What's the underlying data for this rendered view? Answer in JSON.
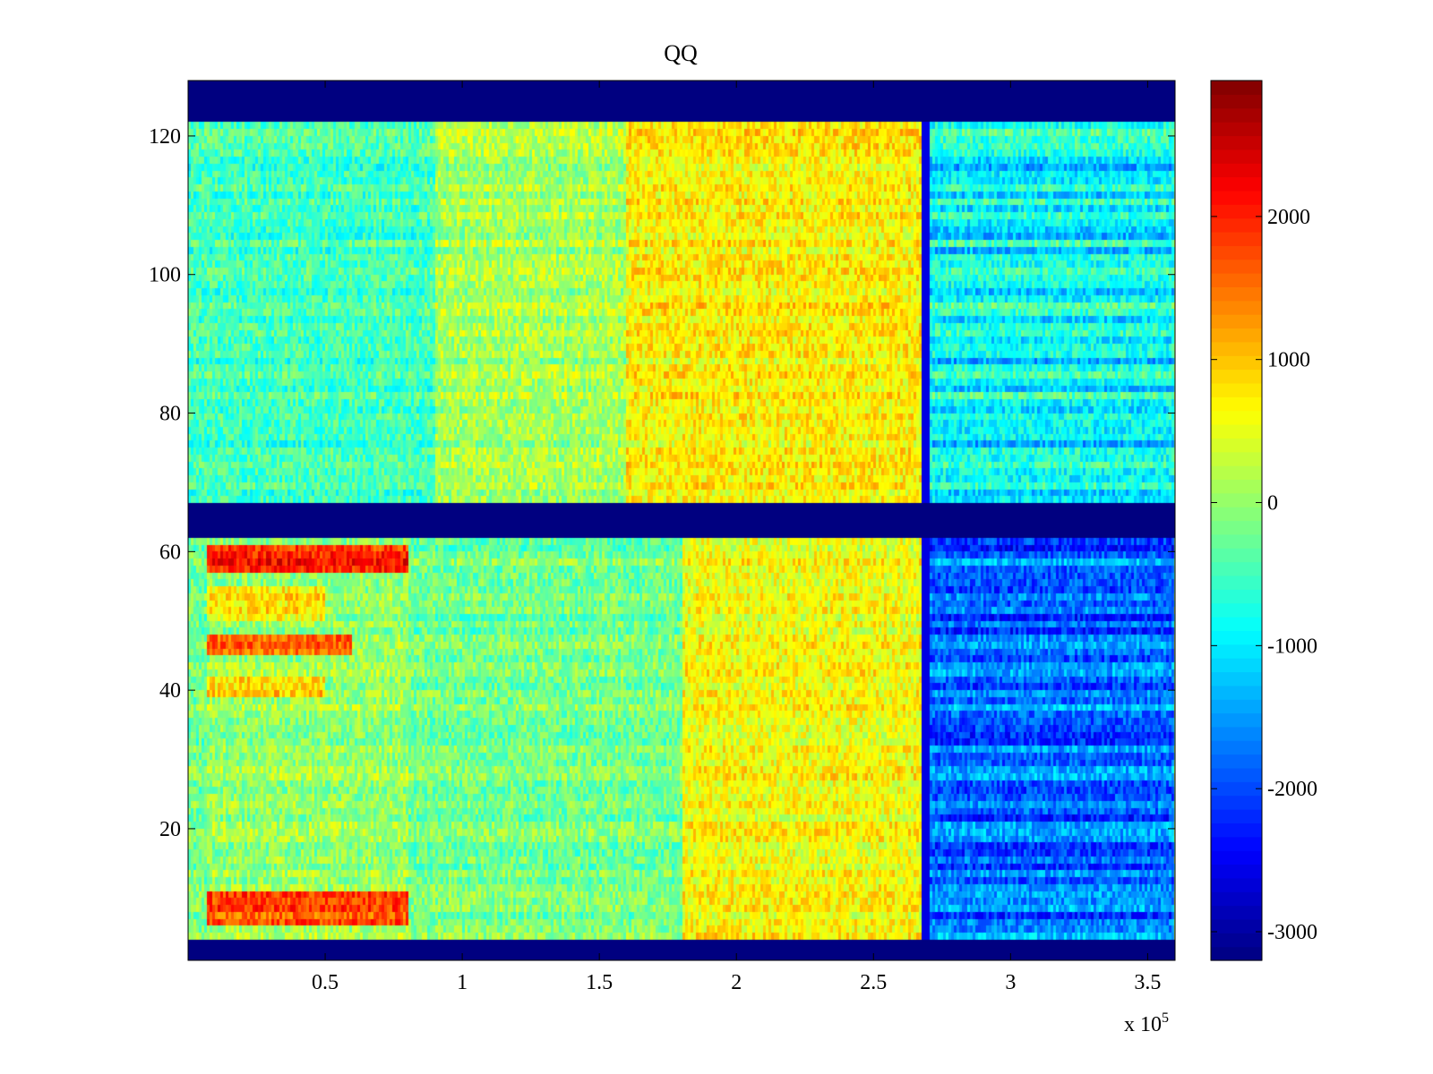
{
  "chart_data": {
    "type": "heatmap",
    "title": "QQ",
    "xlabel": "",
    "ylabel": "",
    "x_multiplier_label": "x 10",
    "x_multiplier_exponent": "5",
    "xlim": [
      0,
      3.6
    ],
    "ylim": [
      1,
      128
    ],
    "x_ticks": [
      0.5,
      1,
      1.5,
      2,
      2.5,
      3,
      3.5
    ],
    "x_tick_labels": [
      "0.5",
      "1",
      "1.5",
      "2",
      "2.5",
      "3",
      "3.5"
    ],
    "y_ticks": [
      20,
      40,
      60,
      80,
      100,
      120
    ],
    "y_tick_labels": [
      "20",
      "40",
      "60",
      "80",
      "100",
      "120"
    ],
    "colorbar": {
      "colormap": "jet",
      "clim": [
        -3200,
        2950
      ],
      "ticks": [
        2000,
        1000,
        0,
        -1000,
        -2000,
        -3000
      ],
      "tick_labels": [
        "2000",
        "1000",
        "0",
        "-1000",
        "-2000",
        "-3000"
      ]
    },
    "masked_rows": [
      [
        1,
        4
      ],
      [
        62,
        67
      ],
      [
        122,
        128
      ]
    ],
    "masked_value": -3200,
    "step_x": 2.69,
    "regions": [
      {
        "x": [
          0,
          0.07
        ],
        "y": [
          4,
          62
        ],
        "mean": -200,
        "note": "left edge strip"
      },
      {
        "x": [
          0.07,
          0.8
        ],
        "y": [
          6,
          11
        ],
        "mean": 1700
      },
      {
        "x": [
          0.07,
          0.8
        ],
        "y": [
          57,
          61
        ],
        "mean": 2000
      },
      {
        "x": [
          0.07,
          0.6
        ],
        "y": [
          45,
          48
        ],
        "mean": 1500
      },
      {
        "x": [
          0.07,
          0.5
        ],
        "y": [
          39,
          42
        ],
        "mean": 900
      },
      {
        "x": [
          0.07,
          0.5
        ],
        "y": [
          50,
          55
        ],
        "mean": 800
      },
      {
        "x": [
          0,
          0.9
        ],
        "y": [
          67,
          122
        ],
        "mean": -500
      },
      {
        "x": [
          0.9,
          1.6
        ],
        "y": [
          67,
          122
        ],
        "mean": 100
      },
      {
        "x": [
          1.6,
          2.69
        ],
        "y": [
          67,
          122
        ],
        "mean": 700
      },
      {
        "x": [
          0.8,
          1.8
        ],
        "y": [
          4,
          62
        ],
        "mean": -200
      },
      {
        "x": [
          1.8,
          2.69
        ],
        "y": [
          4,
          62
        ],
        "mean": 600
      },
      {
        "x": [
          2.69,
          3.6
        ],
        "y": [
          67,
          122
        ],
        "mean": -900
      },
      {
        "x": [
          2.69,
          3.6
        ],
        "y": [
          4,
          62
        ],
        "mean": -1800
      }
    ]
  }
}
